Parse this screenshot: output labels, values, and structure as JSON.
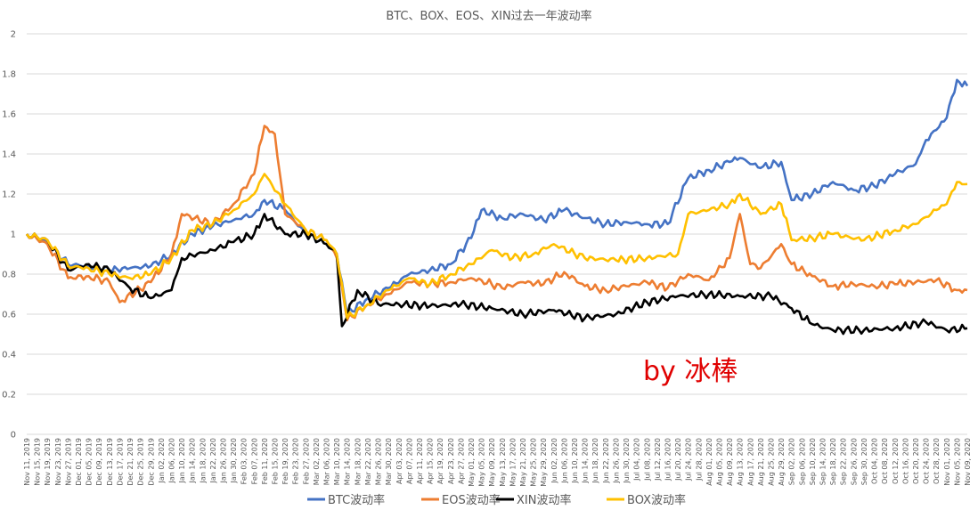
{
  "chart_data": {
    "type": "line",
    "title": "BTC、BOX、EOS、XIN过去一年波动率",
    "ylim": [
      0,
      2
    ],
    "yticks": [
      "0",
      "0.2",
      "0.4",
      "0.6",
      "0.8",
      "1",
      "1.2",
      "1.4",
      "1.6",
      "1.8",
      "2"
    ],
    "grid": true,
    "legend_position": "bottom",
    "x_tick_labels": [
      "Nov 11, 2019",
      "Nov 15, 2019",
      "Nov 19, 2019",
      "Nov 23, 2019",
      "Nov 27, 2019",
      "Dec 01, 2019",
      "Dec 05, 2019",
      "Dec 09, 2019",
      "Dec 13, 2019",
      "Dec 17, 2019",
      "Dec 21, 2019",
      "Dec 25, 2019",
      "Dec 29, 2019",
      "Jan 02, 2020",
      "Jan 06, 2020",
      "Jan 10, 2020",
      "Jan 14, 2020",
      "Jan 18, 2020",
      "Jan 22, 2020",
      "Jan 26, 2020",
      "Jan 30, 2020",
      "Feb 03, 2020",
      "Feb 07, 2020",
      "Feb 11, 2020",
      "Feb 15, 2020",
      "Feb 19, 2020",
      "Feb 23, 2020",
      "Feb 27, 2020",
      "Mar 02, 2020",
      "Mar 06, 2020",
      "Mar 10, 2020",
      "Mar 14, 2020",
      "Mar 18, 2020",
      "Mar 22, 2020",
      "Mar 26, 2020",
      "Mar 30, 2020",
      "Apr 03, 2020",
      "Apr 07, 2020",
      "Apr 11, 2020",
      "Apr 15, 2020",
      "Apr 19, 2020",
      "Apr 23, 2020",
      "Apr 27, 2020",
      "May 01, 2020",
      "May 05, 2020",
      "May 09, 2020",
      "May 13, 2020",
      "May 17, 2020",
      "May 21, 2020",
      "May 25, 2020",
      "May 29, 2020",
      "Jun 02, 2020",
      "Jun 06, 2020",
      "Jun 10, 2020",
      "Jun 14, 2020",
      "Jun 18, 2020",
      "Jun 22, 2020",
      "Jun 26, 2020",
      "Jun 30, 2020",
      "Jul 04, 2020",
      "Jul 08, 2020",
      "Jul 12, 2020",
      "Jul 16, 2020",
      "Jul 20, 2020",
      "Jul 24, 2020",
      "Jul 28, 2020",
      "Aug 01, 2020",
      "Aug 05, 2020",
      "Aug 09, 2020",
      "Aug 13, 2020",
      "Aug 17, 2020",
      "Aug 21, 2020",
      "Aug 25, 2020",
      "Aug 29, 2020",
      "Sep 02, 2020",
      "Sep 06, 2020",
      "Sep 10, 2020",
      "Sep 14, 2020",
      "Sep 18, 2020",
      "Sep 22, 2020",
      "Sep 26, 2020",
      "Sep 30, 2020",
      "Oct 04, 2020",
      "Oct 08, 2020",
      "Oct 12, 2020",
      "Oct 16, 2020",
      "Oct 20, 2020",
      "Oct 24, 2020",
      "Oct 28, 2020",
      "Nov 01, 2020",
      "Nov 05, 2020",
      "Nov 09, 2020"
    ],
    "series": [
      {
        "name": "BTC波动率",
        "color": "#4472c4",
        "x": [
          "Nov 11, 2019",
          "Nov 19, 2019",
          "Nov 27, 2019",
          "Dec 05, 2019",
          "Dec 13, 2019",
          "Dec 21, 2019",
          "Dec 29, 2019",
          "Jan 06, 2020",
          "Jan 14, 2020",
          "Jan 22, 2020",
          "Jan 30, 2020",
          "Feb 07, 2020",
          "Feb 11, 2020",
          "Feb 19, 2020",
          "Feb 27, 2020",
          "Mar 06, 2020",
          "Mar 10, 2020",
          "Mar 14, 2020",
          "Mar 22, 2020",
          "Mar 30, 2020",
          "Apr 07, 2020",
          "Apr 15, 2020",
          "Apr 23, 2020",
          "May 01, 2020",
          "May 05, 2020",
          "May 13, 2020",
          "May 21, 2020",
          "May 29, 2020",
          "Jun 06, 2020",
          "Jun 14, 2020",
          "Jun 22, 2020",
          "Jun 30, 2020",
          "Jul 08, 2020",
          "Jul 16, 2020",
          "Jul 24, 2020",
          "Aug 01, 2020",
          "Aug 09, 2020",
          "Aug 13, 2020",
          "Aug 21, 2020",
          "Aug 29, 2020",
          "Sep 02, 2020",
          "Sep 10, 2020",
          "Sep 18, 2020",
          "Sep 26, 2020",
          "Oct 04, 2020",
          "Oct 12, 2020",
          "Oct 20, 2020",
          "Oct 24, 2020",
          "Oct 28, 2020",
          "Nov 01, 2020",
          "Nov 05, 2020",
          "Nov 09, 2020"
        ],
        "values": [
          1.0,
          0.96,
          0.85,
          0.84,
          0.82,
          0.83,
          0.84,
          0.9,
          1.0,
          1.04,
          1.07,
          1.1,
          1.17,
          1.12,
          1.0,
          0.95,
          0.9,
          0.6,
          0.68,
          0.73,
          0.8,
          0.82,
          0.85,
          0.98,
          1.12,
          1.08,
          1.1,
          1.07,
          1.12,
          1.08,
          1.05,
          1.06,
          1.05,
          1.05,
          1.28,
          1.32,
          1.36,
          1.38,
          1.33,
          1.36,
          1.17,
          1.2,
          1.26,
          1.22,
          1.24,
          1.3,
          1.35,
          1.47,
          1.52,
          1.58,
          1.77,
          1.74
        ]
      },
      {
        "name": "EOS波动率",
        "color": "#ed7d31",
        "x": [
          "Nov 11, 2019",
          "Nov 19, 2019",
          "Nov 27, 2019",
          "Dec 05, 2019",
          "Dec 13, 2019",
          "Dec 17, 2019",
          "Dec 29, 2019",
          "Jan 06, 2020",
          "Jan 10, 2020",
          "Jan 22, 2020",
          "Jan 30, 2020",
          "Feb 07, 2020",
          "Feb 11, 2020",
          "Feb 15, 2020",
          "Feb 19, 2020",
          "Feb 27, 2020",
          "Mar 06, 2020",
          "Mar 10, 2020",
          "Mar 14, 2020",
          "Mar 22, 2020",
          "Mar 30, 2020",
          "Apr 07, 2020",
          "Apr 15, 2020",
          "Apr 23, 2020",
          "May 01, 2020",
          "May 05, 2020",
          "May 13, 2020",
          "May 21, 2020",
          "May 29, 2020",
          "Jun 06, 2020",
          "Jun 14, 2020",
          "Jun 22, 2020",
          "Jun 30, 2020",
          "Jul 08, 2020",
          "Jul 16, 2020",
          "Jul 24, 2020",
          "Aug 01, 2020",
          "Aug 09, 2020",
          "Aug 13, 2020",
          "Aug 17, 2020",
          "Aug 21, 2020",
          "Aug 29, 2020",
          "Sep 02, 2020",
          "Sep 10, 2020",
          "Sep 18, 2020",
          "Sep 26, 2020",
          "Oct 04, 2020",
          "Oct 12, 2020",
          "Oct 20, 2020",
          "Oct 28, 2020",
          "Nov 05, 2020",
          "Nov 09, 2020"
        ],
        "values": [
          1.0,
          0.95,
          0.78,
          0.79,
          0.76,
          0.66,
          0.76,
          0.9,
          1.1,
          1.05,
          1.15,
          1.3,
          1.54,
          1.5,
          1.1,
          1.02,
          0.97,
          0.88,
          0.57,
          0.65,
          0.7,
          0.76,
          0.75,
          0.76,
          0.78,
          0.77,
          0.73,
          0.76,
          0.75,
          0.81,
          0.74,
          0.72,
          0.74,
          0.76,
          0.73,
          0.8,
          0.77,
          0.88,
          1.1,
          0.85,
          0.83,
          0.95,
          0.85,
          0.79,
          0.74,
          0.75,
          0.74,
          0.75,
          0.76,
          0.77,
          0.72,
          0.72
        ]
      },
      {
        "name": "XIN波动率",
        "color": "#000000",
        "x": [
          "Nov 11, 2019",
          "Nov 19, 2019",
          "Nov 27, 2019",
          "Dec 05, 2019",
          "Dec 13, 2019",
          "Dec 21, 2019",
          "Dec 29, 2019",
          "Jan 06, 2020",
          "Jan 10, 2020",
          "Jan 22, 2020",
          "Jan 30, 2020",
          "Feb 07, 2020",
          "Feb 11, 2020",
          "Feb 19, 2020",
          "Feb 27, 2020",
          "Mar 06, 2020",
          "Mar 10, 2020",
          "Mar 12, 2020",
          "Mar 18, 2020",
          "Mar 26, 2020",
          "Apr 03, 2020",
          "Apr 15, 2020",
          "Apr 27, 2020",
          "May 09, 2020",
          "May 21, 2020",
          "Jun 02, 2020",
          "Jun 14, 2020",
          "Jun 26, 2020",
          "Jul 08, 2020",
          "Jul 20, 2020",
          "Aug 01, 2020",
          "Aug 13, 2020",
          "Aug 25, 2020",
          "Sep 02, 2020",
          "Sep 10, 2020",
          "Sep 18, 2020",
          "Sep 30, 2020",
          "Oct 12, 2020",
          "Oct 24, 2020",
          "Nov 01, 2020",
          "Nov 09, 2020"
        ],
        "values": [
          1.0,
          0.97,
          0.82,
          0.85,
          0.82,
          0.73,
          0.68,
          0.72,
          0.88,
          0.92,
          0.96,
          1.0,
          1.1,
          1.0,
          1.0,
          0.95,
          0.9,
          0.54,
          0.72,
          0.65,
          0.65,
          0.64,
          0.65,
          0.63,
          0.6,
          0.62,
          0.58,
          0.6,
          0.66,
          0.69,
          0.7,
          0.69,
          0.69,
          0.63,
          0.55,
          0.52,
          0.52,
          0.53,
          0.56,
          0.52,
          0.53
        ]
      },
      {
        "name": "BOX波动率",
        "color": "#ffc000",
        "x": [
          "Nov 11, 2019",
          "Nov 19, 2019",
          "Nov 27, 2019",
          "Dec 05, 2019",
          "Dec 13, 2019",
          "Dec 21, 2019",
          "Dec 29, 2019",
          "Jan 06, 2020",
          "Jan 14, 2020",
          "Jan 22, 2020",
          "Jan 30, 2020",
          "Feb 07, 2020",
          "Feb 11, 2020",
          "Feb 19, 2020",
          "Feb 27, 2020",
          "Mar 06, 2020",
          "Mar 10, 2020",
          "Mar 14, 2020",
          "Mar 22, 2020",
          "Mar 30, 2020",
          "Apr 07, 2020",
          "Apr 15, 2020",
          "Apr 23, 2020",
          "May 01, 2020",
          "May 09, 2020",
          "May 17, 2020",
          "May 25, 2020",
          "Jun 02, 2020",
          "Jun 14, 2020",
          "Jun 26, 2020",
          "Jul 08, 2020",
          "Jul 20, 2020",
          "Jul 24, 2020",
          "Aug 01, 2020",
          "Aug 09, 2020",
          "Aug 13, 2020",
          "Aug 21, 2020",
          "Aug 29, 2020",
          "Sep 02, 2020",
          "Sep 10, 2020",
          "Sep 18, 2020",
          "Sep 30, 2020",
          "Oct 12, 2020",
          "Oct 20, 2020",
          "Oct 28, 2020",
          "Nov 01, 2020",
          "Nov 05, 2020",
          "Nov 09, 2020"
        ],
        "values": [
          1.0,
          0.97,
          0.84,
          0.83,
          0.8,
          0.78,
          0.8,
          0.88,
          1.02,
          1.05,
          1.12,
          1.2,
          1.3,
          1.15,
          1.02,
          0.97,
          0.9,
          0.58,
          0.65,
          0.72,
          0.78,
          0.75,
          0.8,
          0.85,
          0.92,
          0.88,
          0.9,
          0.95,
          0.88,
          0.87,
          0.88,
          0.9,
          1.1,
          1.12,
          1.15,
          1.2,
          1.1,
          1.15,
          0.97,
          0.98,
          1.0,
          0.97,
          1.02,
          1.05,
          1.12,
          1.15,
          1.26,
          1.25
        ]
      }
    ]
  },
  "watermark_text": "by 冰棒"
}
